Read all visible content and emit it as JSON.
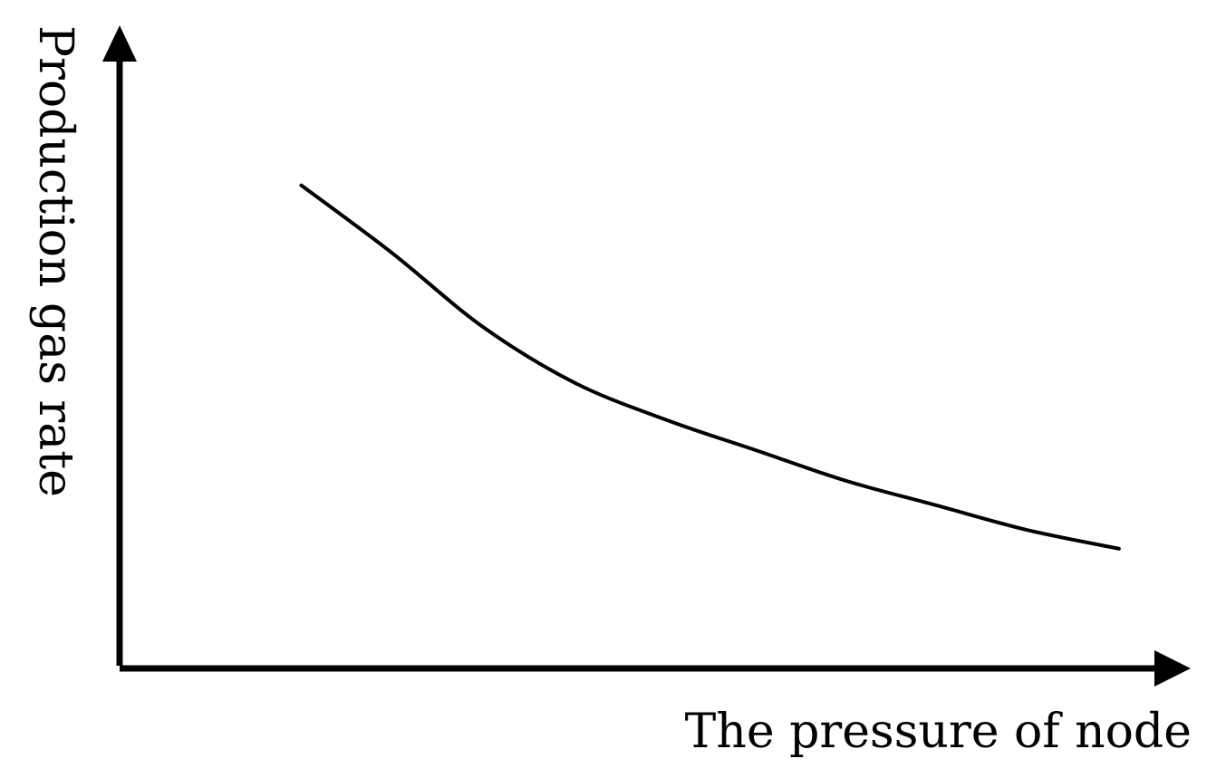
{
  "chart_data": {
    "type": "line",
    "title": "",
    "xlabel": "The pressure of node",
    "ylabel": "Production gas rate",
    "axis_ticks": false,
    "grid": false,
    "legend": "none",
    "line_color": "#000000",
    "x": [
      0.2,
      0.3,
      0.4,
      0.5,
      0.6,
      0.7,
      0.8,
      0.9,
      1.0,
      1.1
    ],
    "y": [
      0.78,
      0.67,
      0.55,
      0.46,
      0.4,
      0.35,
      0.3,
      0.26,
      0.22,
      0.19
    ],
    "xlim": [
      0,
      1.15
    ],
    "ylim": [
      0,
      1.0
    ]
  }
}
